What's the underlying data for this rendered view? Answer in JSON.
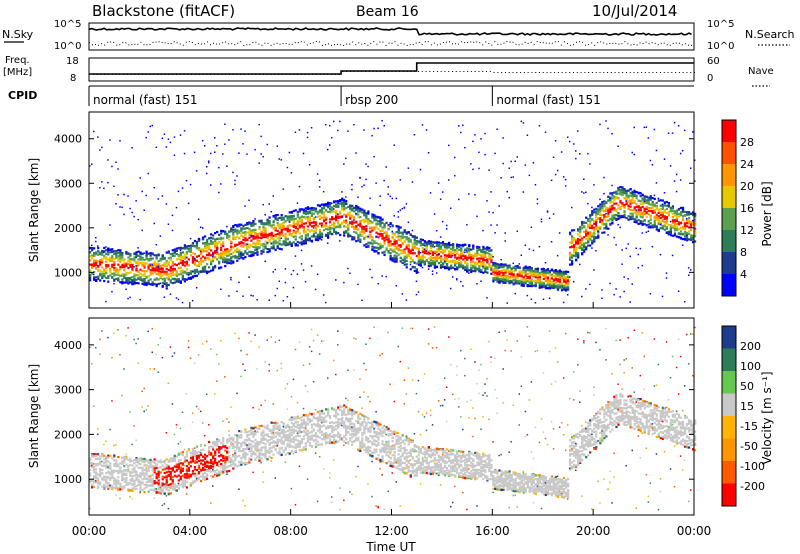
{
  "header": {
    "station": "Blackstone (fitACF)",
    "beam": "Beam 16",
    "date": "10/Jul/2014"
  },
  "chart_data": [
    {
      "type": "line",
      "panel": "noise",
      "left_label": "N.Sky",
      "right_label": "N.Search",
      "left_ticks": [
        "10^5",
        "10^0"
      ],
      "right_ticks": [
        "10^5",
        "10^0"
      ]
    },
    {
      "type": "line",
      "panel": "freq-nave",
      "left_label_1": "Freq.",
      "left_label_2": "[MHz]",
      "right_label": "Nave",
      "left_ticks": [
        "18",
        "8"
      ],
      "right_ticks": [
        "60",
        "0"
      ]
    },
    {
      "type": "table",
      "panel": "cpid",
      "label": "CPID",
      "segments": [
        {
          "start": 0,
          "end": 10,
          "label": "normal (fast) 151"
        },
        {
          "start": 10,
          "end": 16,
          "label": "rbsp 200"
        },
        {
          "start": 16,
          "end": 24,
          "label": "normal (fast) 151"
        }
      ]
    },
    {
      "type": "heatmap",
      "panel": "power",
      "ylabel": "Slant Range [km]",
      "ylim": [
        200,
        4600
      ],
      "yticks": [
        1000,
        2000,
        3000,
        4000
      ],
      "xlim": [
        0,
        24
      ],
      "colorbar_label": "Power [dB]",
      "colorbar_ticks": [
        "28",
        "24",
        "20",
        "16",
        "12",
        "8",
        "4"
      ]
    },
    {
      "type": "heatmap",
      "panel": "velocity",
      "ylabel": "Slant Range [km]",
      "xlabel": "Time UT",
      "ylim": [
        200,
        4600
      ],
      "yticks": [
        1000,
        2000,
        3000,
        4000
      ],
      "xlim": [
        0,
        24
      ],
      "xticks": [
        "00:00",
        "04:00",
        "08:00",
        "12:00",
        "16:00",
        "20:00",
        "00:00"
      ],
      "colorbar_label": "Velocity [m s⁻¹]",
      "colorbar_ticks": [
        "200",
        "100",
        "50",
        "15",
        "-15",
        "-50",
        "-100",
        "-200"
      ]
    }
  ],
  "colors": {
    "power_scale": [
      "#0000ff",
      "#1e3c8c",
      "#2e7d5a",
      "#5aa050",
      "#e6c800",
      "#ff9600",
      "#ff5000",
      "#ff0000"
    ],
    "velocity_scale": [
      "#ff0000",
      "#ff5a00",
      "#ff9600",
      "#ffb400",
      "#c8c8c8",
      "#64c850",
      "#2e7d5a",
      "#1e3c8c"
    ]
  }
}
